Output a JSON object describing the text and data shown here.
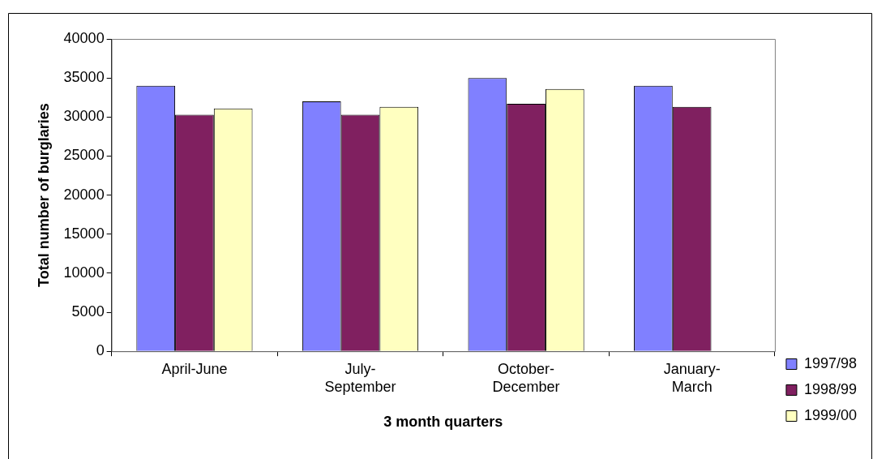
{
  "chart_data": {
    "type": "bar",
    "xlabel": "3 month quarters",
    "ylabel": "Total number of burglaries",
    "categories": [
      "April-June",
      "July-September",
      "October-December",
      "January-March"
    ],
    "series": [
      {
        "name": "1997/98",
        "color": "#8080ff",
        "values": [
          34000,
          32000,
          35000,
          34000
        ]
      },
      {
        "name": "1998/99",
        "color": "#802060",
        "values": [
          30300,
          30300,
          31700,
          31300
        ]
      },
      {
        "name": "1999/00",
        "color": "#ffffc0",
        "values": [
          31100,
          31300,
          33600,
          null
        ]
      }
    ],
    "ylim": [
      0,
      40000
    ],
    "yticks": [
      0,
      5000,
      10000,
      15000,
      20000,
      25000,
      30000,
      35000,
      40000
    ],
    "grid": false,
    "legend": "right"
  }
}
